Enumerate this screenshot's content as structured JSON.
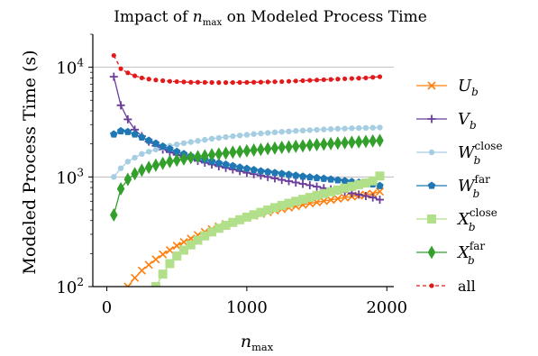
{
  "chart_data": {
    "type": "line",
    "title": "Impact of n_max on Modeled Process Time",
    "title_parts": {
      "before": "Impact of ",
      "var": "n",
      "var_sub": "max",
      "after": " on Modeled Process Time"
    },
    "xlabel": "n_max",
    "xlabel_parts": {
      "var": "n",
      "var_sub": "max"
    },
    "ylabel": "Modeled Process Time (s)",
    "x_scale": "linear",
    "y_scale": "log",
    "xlim": [
      -100,
      2050
    ],
    "ylim": [
      100,
      20000
    ],
    "x_ticks": [
      0,
      1000,
      2000
    ],
    "x_tick_labels": [
      "0",
      "1000",
      "2000"
    ],
    "y_ticks": [
      100,
      1000,
      10000
    ],
    "y_tick_labels": [
      {
        "base": "10",
        "exp": "2"
      },
      {
        "base": "10",
        "exp": "3"
      },
      {
        "base": "10",
        "exp": "4"
      }
    ],
    "grid": "horizontal-major",
    "legend_position": "right",
    "series": [
      {
        "name": "U_b",
        "label_parts": {
          "var": "U",
          "sub": "b",
          "sup": ""
        },
        "color": "#ff7f0e",
        "marker": "x",
        "line": "solid",
        "x": [
          150,
          200,
          250,
          300,
          350,
          400,
          450,
          500,
          550,
          600,
          650,
          700,
          750,
          800,
          850,
          900,
          950,
          1000,
          1050,
          1100,
          1150,
          1200,
          1250,
          1300,
          1350,
          1400,
          1450,
          1500,
          1550,
          1600,
          1650,
          1700,
          1750,
          1800,
          1850,
          1900,
          1950
        ],
        "y": [
          100,
          120,
          140,
          158,
          177,
          197,
          215,
          236,
          255,
          274,
          295,
          315,
          334,
          353,
          372,
          390,
          408,
          425,
          443,
          460,
          477,
          494,
          510,
          526,
          542,
          557,
          573,
          588,
          603,
          618,
          633,
          648,
          662,
          676,
          690,
          704,
          735
        ]
      },
      {
        "name": "V_b",
        "label_parts": {
          "var": "V",
          "sub": "b",
          "sup": ""
        },
        "color": "#6a3d9a",
        "marker": "+",
        "line": "solid",
        "x": [
          50,
          100,
          150,
          200,
          250,
          300,
          350,
          400,
          450,
          500,
          550,
          600,
          650,
          700,
          750,
          800,
          850,
          900,
          950,
          1000,
          1050,
          1100,
          1150,
          1200,
          1250,
          1300,
          1350,
          1400,
          1450,
          1500,
          1550,
          1600,
          1650,
          1700,
          1750,
          1800,
          1850,
          1900,
          1950
        ],
        "y": [
          8200,
          4500,
          3350,
          2700,
          2350,
          2100,
          1920,
          1780,
          1680,
          1590,
          1520,
          1460,
          1400,
          1350,
          1300,
          1250,
          1210,
          1170,
          1130,
          1090,
          1060,
          1030,
          1000,
          970,
          940,
          915,
          890,
          865,
          840,
          815,
          790,
          770,
          750,
          730,
          710,
          690,
          670,
          650,
          620
        ]
      },
      {
        "name": "W_b^close",
        "label_parts": {
          "var": "W",
          "sub": "b",
          "sup": "close"
        },
        "color": "#a6cee3",
        "marker": "circle",
        "line": "solid",
        "x": [
          50,
          100,
          150,
          200,
          250,
          300,
          350,
          400,
          450,
          500,
          550,
          600,
          650,
          700,
          750,
          800,
          850,
          900,
          950,
          1000,
          1050,
          1100,
          1150,
          1200,
          1250,
          1300,
          1350,
          1400,
          1450,
          1500,
          1550,
          1600,
          1650,
          1700,
          1750,
          1800,
          1850,
          1900,
          1950
        ],
        "y": [
          1000,
          1200,
          1380,
          1500,
          1620,
          1700,
          1780,
          1850,
          1920,
          1980,
          2030,
          2080,
          2130,
          2180,
          2230,
          2270,
          2310,
          2350,
          2390,
          2420,
          2460,
          2490,
          2520,
          2550,
          2580,
          2600,
          2630,
          2650,
          2670,
          2690,
          2710,
          2730,
          2750,
          2760,
          2780,
          2790,
          2800,
          2810,
          2820
        ]
      },
      {
        "name": "W_b^far",
        "label_parts": {
          "var": "W",
          "sub": "b",
          "sup": "far"
        },
        "color": "#1f78b4",
        "marker": "pentagon",
        "line": "solid",
        "x": [
          50,
          100,
          150,
          200,
          250,
          300,
          350,
          400,
          450,
          500,
          550,
          600,
          650,
          700,
          750,
          800,
          850,
          900,
          950,
          1000,
          1050,
          1100,
          1150,
          1200,
          1250,
          1300,
          1350,
          1400,
          1450,
          1500,
          1550,
          1600,
          1650,
          1700,
          1750,
          1800,
          1850,
          1900,
          1950
        ],
        "y": [
          2450,
          2620,
          2580,
          2450,
          2300,
          2150,
          2020,
          1900,
          1800,
          1700,
          1620,
          1550,
          1490,
          1440,
          1390,
          1340,
          1300,
          1260,
          1220,
          1190,
          1160,
          1130,
          1110,
          1090,
          1070,
          1050,
          1030,
          1010,
          995,
          980,
          965,
          950,
          935,
          920,
          905,
          890,
          875,
          860,
          830
        ]
      },
      {
        "name": "X_b^close",
        "label_parts": {
          "var": "X",
          "sub": "b",
          "sup": "close"
        },
        "color": "#b2df8a",
        "marker": "square",
        "line": "solid",
        "x": [
          350,
          400,
          450,
          500,
          550,
          600,
          650,
          700,
          750,
          800,
          850,
          900,
          950,
          1000,
          1050,
          1100,
          1150,
          1200,
          1250,
          1300,
          1350,
          1400,
          1450,
          1500,
          1550,
          1600,
          1650,
          1700,
          1750,
          1800,
          1850,
          1900,
          1950
        ],
        "y": [
          100,
          130,
          162,
          190,
          215,
          240,
          265,
          290,
          315,
          340,
          362,
          385,
          407,
          430,
          452,
          475,
          500,
          525,
          550,
          575,
          600,
          625,
          650,
          678,
          705,
          732,
          760,
          790,
          820,
          850,
          880,
          920,
          1020
        ]
      },
      {
        "name": "X_b^far",
        "label_parts": {
          "var": "X",
          "sub": "b",
          "sup": "far"
        },
        "color": "#33a02c",
        "marker": "diamond",
        "line": "solid",
        "x": [
          50,
          100,
          150,
          200,
          250,
          300,
          350,
          400,
          450,
          500,
          550,
          600,
          650,
          700,
          750,
          800,
          850,
          900,
          950,
          1000,
          1050,
          1100,
          1150,
          1200,
          1250,
          1300,
          1350,
          1400,
          1450,
          1500,
          1550,
          1600,
          1650,
          1700,
          1750,
          1800,
          1850,
          1900,
          1950
        ],
        "y": [
          450,
          780,
          950,
          1070,
          1150,
          1220,
          1280,
          1330,
          1380,
          1420,
          1460,
          1500,
          1530,
          1560,
          1590,
          1620,
          1650,
          1680,
          1700,
          1730,
          1760,
          1780,
          1810,
          1830,
          1860,
          1880,
          1900,
          1920,
          1950,
          1970,
          1990,
          2010,
          2030,
          2050,
          2070,
          2090,
          2110,
          2130,
          2150
        ]
      },
      {
        "name": "all",
        "label_parts": {
          "var": "",
          "sub": "",
          "sup": "",
          "text": "all"
        },
        "color": "#e31a1c",
        "marker": "dot",
        "line": "dashed",
        "x": [
          50,
          100,
          150,
          200,
          250,
          300,
          350,
          400,
          450,
          500,
          550,
          600,
          650,
          700,
          750,
          800,
          850,
          900,
          950,
          1000,
          1050,
          1100,
          1150,
          1200,
          1250,
          1300,
          1350,
          1400,
          1450,
          1500,
          1550,
          1600,
          1650,
          1700,
          1750,
          1800,
          1850,
          1900,
          1950
        ],
        "y": [
          12800,
          9700,
          8900,
          8350,
          8000,
          7800,
          7650,
          7550,
          7450,
          7400,
          7350,
          7300,
          7300,
          7280,
          7270,
          7250,
          7250,
          7260,
          7270,
          7280,
          7300,
          7320,
          7350,
          7380,
          7400,
          7450,
          7500,
          7550,
          7600,
          7650,
          7700,
          7750,
          7800,
          7850,
          7900,
          7950,
          8000,
          8100,
          8200
        ]
      }
    ]
  }
}
